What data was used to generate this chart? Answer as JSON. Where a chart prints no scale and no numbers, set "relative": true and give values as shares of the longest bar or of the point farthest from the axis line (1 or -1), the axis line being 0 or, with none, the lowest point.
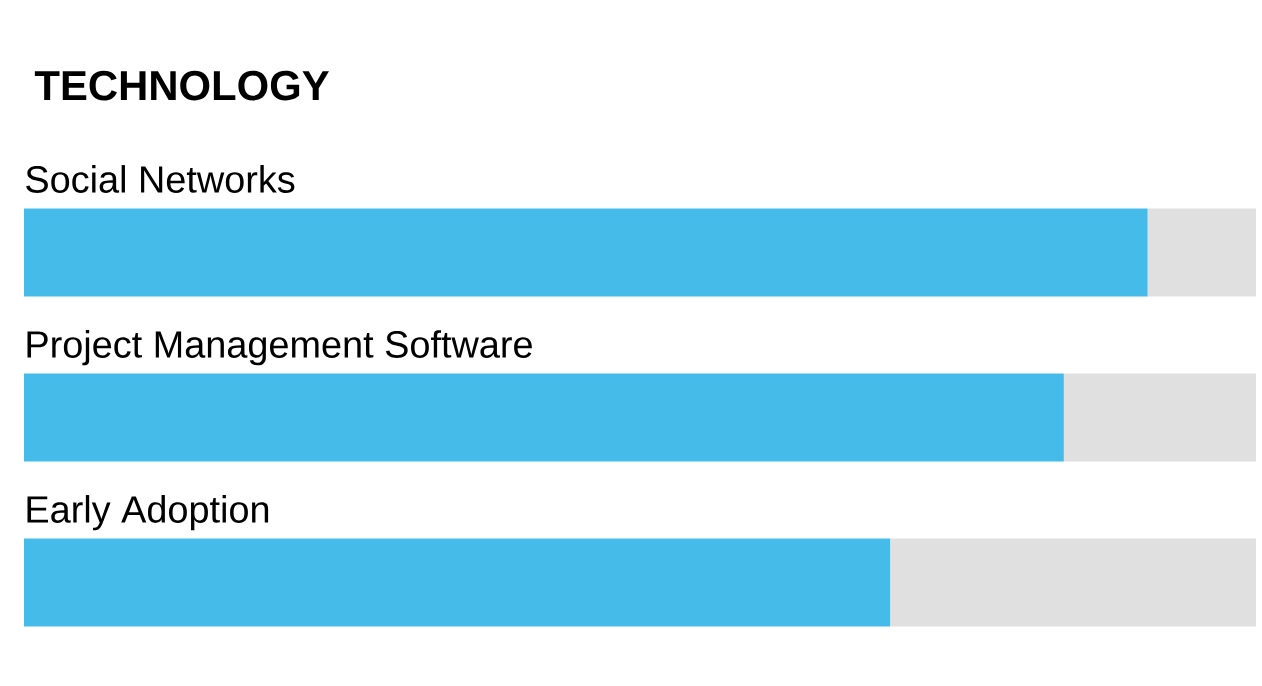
{
  "chart_data": {
    "type": "bar",
    "orientation": "horizontal",
    "stacked": true,
    "relative": true,
    "title": "TECHNOLOGY",
    "categories": [
      "Social Networks",
      "Project Management Software",
      "Early Adoption"
    ],
    "series": [
      {
        "color": "#45bbea",
        "values": [
          0.912,
          0.844,
          0.703
        ]
      },
      {
        "color": "#e0e0e0",
        "values": [
          0.088,
          0.156,
          0.297
        ]
      }
    ]
  }
}
